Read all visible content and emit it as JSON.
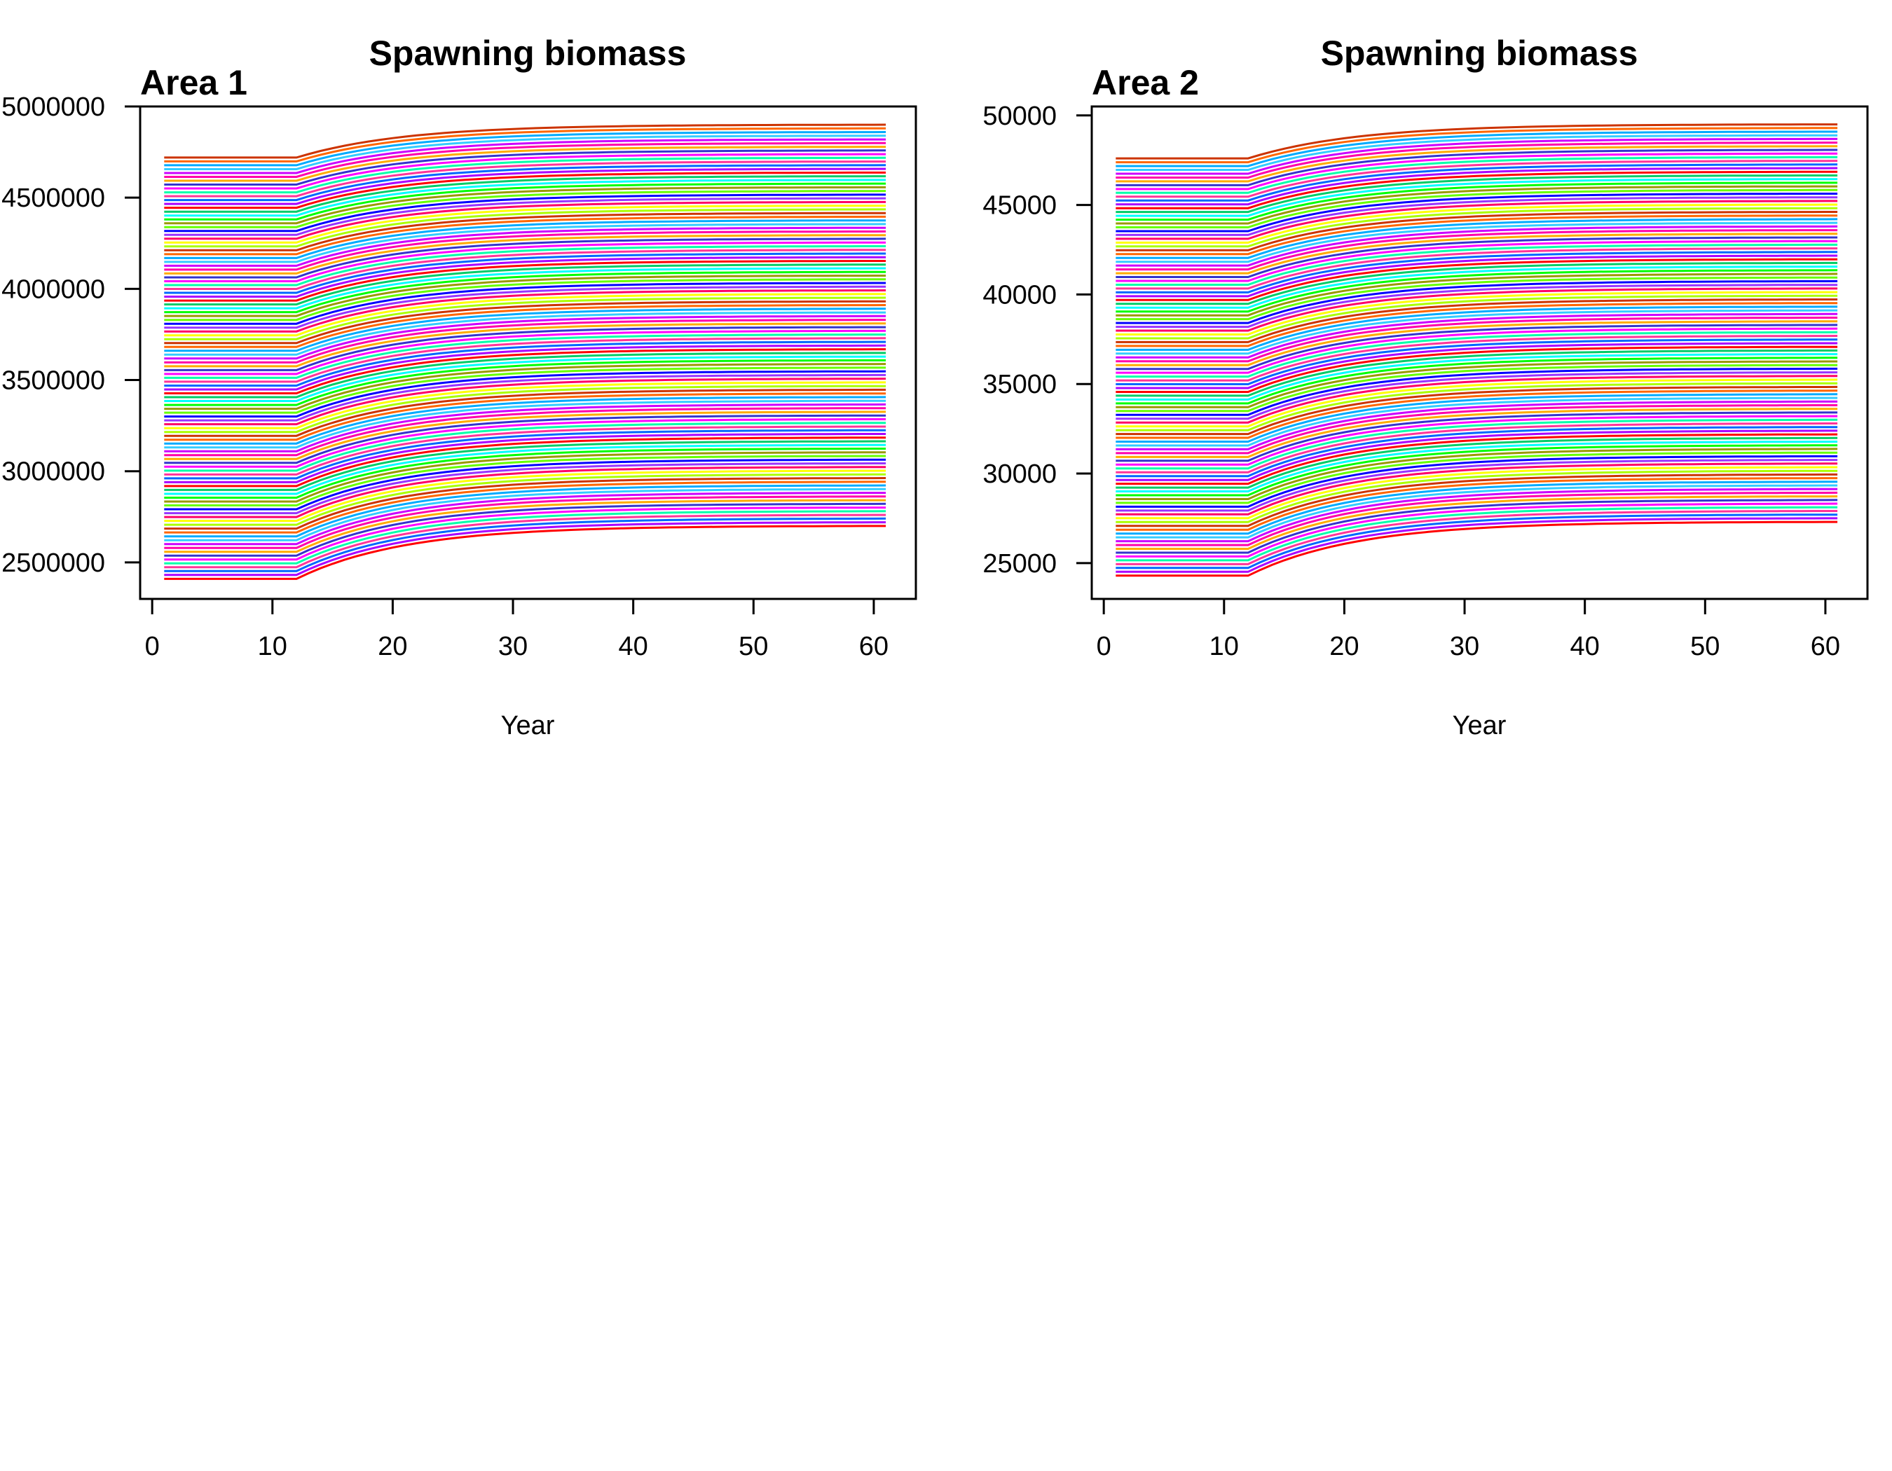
{
  "chart_data": [
    {
      "type": "line",
      "title": "Spawning biomass",
      "panel_label": "Area 1",
      "xlabel": "Year",
      "ylabel": "",
      "xlim": [
        -1,
        63.5
      ],
      "ylim": [
        2300000,
        5000000
      ],
      "xticks": [
        0,
        10,
        20,
        30,
        40,
        50,
        60
      ],
      "yticks": [
        2500000,
        3000000,
        3500000,
        4000000,
        4500000,
        5000000
      ],
      "ytick_labels": [
        "2500000",
        "3000000",
        "3500000",
        "4000000",
        "4500000",
        "5000000"
      ],
      "x_start": 1,
      "x_end": 61,
      "x_step": 1,
      "flat_until_year": 12,
      "grid": false,
      "legend": "none",
      "series_count": 110,
      "series_start_range": [
        2410000,
        4720000
      ],
      "series_end_range": [
        2700000,
        4900000
      ],
      "colors": [
        "#ff0000",
        "#ffaa00",
        "#aaff00",
        "#00ff00",
        "#00ffaa",
        "#00aaff",
        "#0000ff",
        "#aa00ff",
        "#ff00aa",
        "#ffff00",
        "#00ffff",
        "#ff00ff",
        "#ff6600",
        "#66ff00",
        "#0066ff",
        "#cc00ff",
        "#ff0066",
        "#00cc66",
        "#3333cc",
        "#cc3300",
        "#999900",
        "#ff3399",
        "#33ccff",
        "#9933ff"
      ]
    },
    {
      "type": "line",
      "title": "Spawning biomass",
      "panel_label": "Area 2",
      "xlabel": "Year",
      "ylabel": "",
      "xlim": [
        -1,
        63.5
      ],
      "ylim": [
        23000,
        50500
      ],
      "xticks": [
        0,
        10,
        20,
        30,
        40,
        50,
        60
      ],
      "yticks": [
        25000,
        30000,
        35000,
        40000,
        45000,
        50000
      ],
      "ytick_labels": [
        "25000",
        "30000",
        "35000",
        "40000",
        "45000",
        "50000"
      ],
      "x_start": 1,
      "x_end": 61,
      "x_step": 1,
      "flat_until_year": 12,
      "grid": false,
      "legend": "none",
      "series_count": 110,
      "series_start_range": [
        24300,
        47600
      ],
      "series_end_range": [
        27300,
        49500
      ],
      "colors": [
        "#ff0000",
        "#ffaa00",
        "#aaff00",
        "#00ff00",
        "#00ffaa",
        "#00aaff",
        "#0000ff",
        "#aa00ff",
        "#ff00aa",
        "#ffff00",
        "#00ffff",
        "#ff00ff",
        "#ff6600",
        "#66ff00",
        "#0066ff",
        "#cc00ff",
        "#ff0066",
        "#00cc66",
        "#3333cc",
        "#cc3300",
        "#999900",
        "#ff3399",
        "#33ccff",
        "#9933ff"
      ]
    }
  ]
}
